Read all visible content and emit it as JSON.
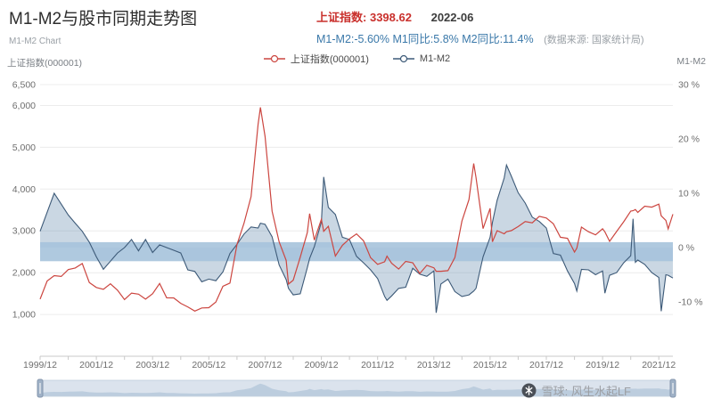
{
  "header": {
    "title": "M1-M2与股市同期走势图",
    "subtitle": "M1-M2 Chart",
    "index_label": "上证指数:",
    "index_value": "3398.62",
    "date": "2022-06",
    "stats_line": "M1-M2:-5.60% M1同比:5.8% M2同比:11.4%",
    "source_note": "(数据来源: 国家统计局)"
  },
  "colors": {
    "index_red": "#c9302c",
    "stats_blue": "#3a78a9",
    "sse_line": "#cc4640",
    "m1m2_line": "#3d5a78",
    "m1m2_area": "rgba(104,140,176,0.35)",
    "zero_band": "#a6c3dc",
    "grid": "#ececec",
    "axis": "#c8c8c8",
    "tick_text": "#6e6e6e"
  },
  "watermark": {
    "text": "雪球: 风生水起LF"
  },
  "chart_data": {
    "type": "line",
    "title": "M1-M2与股市同期走势图",
    "legend_position": "top-center",
    "grid": true,
    "x": [
      "1999/12",
      "2000/03",
      "2000/06",
      "2000/09",
      "2000/12",
      "2001/03",
      "2001/06",
      "2001/09",
      "2001/12",
      "2002/03",
      "2002/06",
      "2002/09",
      "2002/12",
      "2003/03",
      "2003/06",
      "2003/09",
      "2003/12",
      "2004/03",
      "2004/06",
      "2004/09",
      "2004/12",
      "2005/03",
      "2005/06",
      "2005/09",
      "2005/12",
      "2006/03",
      "2006/06",
      "2006/09",
      "2006/12",
      "2007/03",
      "2007/06",
      "2007/09",
      "2007/10",
      "2007/12",
      "2008/03",
      "2008/06",
      "2008/09",
      "2008/10",
      "2008/12",
      "2009/03",
      "2009/06",
      "2009/07",
      "2009/09",
      "2009/12",
      "2010/01",
      "2010/03",
      "2010/06",
      "2010/09",
      "2010/12",
      "2011/03",
      "2011/06",
      "2011/09",
      "2011/12",
      "2012/03",
      "2012/04",
      "2012/06",
      "2012/09",
      "2012/12",
      "2013/03",
      "2013/06",
      "2013/09",
      "2013/12",
      "2014/01",
      "2014/03",
      "2014/06",
      "2014/09",
      "2014/12",
      "2015/03",
      "2015/05",
      "2015/06",
      "2015/09",
      "2015/12",
      "2016/01",
      "2016/03",
      "2016/06",
      "2016/07",
      "2016/09",
      "2016/12",
      "2017/03",
      "2017/06",
      "2017/09",
      "2017/12",
      "2018/03",
      "2018/06",
      "2018/09",
      "2018/12",
      "2019/01",
      "2019/03",
      "2019/06",
      "2019/09",
      "2019/12",
      "2020/01",
      "2020/03",
      "2020/06",
      "2020/09",
      "2020/12",
      "2021/01",
      "2021/02",
      "2021/03",
      "2021/06",
      "2021/09",
      "2021/12",
      "2022/01",
      "2022/03",
      "2022/04",
      "2022/06"
    ],
    "x_tick_labels": [
      "1999/12",
      "2001/12",
      "2003/12",
      "2005/12",
      "2007/12",
      "2009/12",
      "2011/12",
      "2013/12",
      "2015/12",
      "2017/12",
      "2019/12",
      "2021/12"
    ],
    "left_axis": {
      "caption": "上证指数(000001)",
      "range": [
        0,
        6500
      ],
      "ticks": [
        {
          "v": 6500,
          "label": "6,500"
        },
        {
          "v": 6000,
          "label": "6,000"
        },
        {
          "v": 5000,
          "label": "5,000"
        },
        {
          "v": 4000,
          "label": "4,000"
        },
        {
          "v": 3000,
          "label": "3,000"
        },
        {
          "v": 2000,
          "label": "2,000"
        },
        {
          "v": 1000,
          "label": "1,000"
        }
      ]
    },
    "right_axis": {
      "caption": "M1-M2",
      "range": [
        -20,
        30
      ],
      "ticks": [
        {
          "v": 30,
          "label": "30 %"
        },
        {
          "v": 20,
          "label": "20 %"
        },
        {
          "v": 10,
          "label": "10 %"
        },
        {
          "v": 0,
          "label": "0 %"
        },
        {
          "v": -10,
          "label": "-10 %"
        }
      ]
    },
    "band": {
      "axis": "right",
      "from": 1,
      "to": -2.5
    },
    "series": [
      {
        "name": "上证指数(000001)",
        "axis": "left",
        "color": "#cc4640",
        "values": [
          1367,
          1800,
          1929,
          1910,
          2073,
          2112,
          2218,
          1764,
          1646,
          1603,
          1732,
          1582,
          1357,
          1510,
          1486,
          1367,
          1497,
          1741,
          1399,
          1396,
          1266,
          1181,
          1080,
          1155,
          1161,
          1298,
          1672,
          1752,
          2675,
          3183,
          3820,
          5552,
          5955,
          5262,
          3472,
          2736,
          2294,
          1729,
          1821,
          2373,
          2959,
          3412,
          2779,
          3277,
          2989,
          3109,
          2398,
          2655,
          2808,
          2928,
          2762,
          2359,
          2199,
          2262,
          2396,
          2225,
          2086,
          2269,
          2237,
          1979,
          2175,
          2116,
          2033,
          2033,
          2048,
          2364,
          3235,
          3748,
          4612,
          4277,
          3053,
          3539,
          2738,
          3004,
          2930,
          2979,
          3005,
          3104,
          3223,
          3192,
          3349,
          3307,
          3169,
          2847,
          2821,
          2494,
          2585,
          3091,
          2979,
          2905,
          3050,
          2977,
          2750,
          2985,
          3218,
          3473,
          3483,
          3509,
          3442,
          3591,
          3568,
          3640,
          3361,
          3252,
          3047,
          3399
        ]
      },
      {
        "name": "M1-M2",
        "axis": "right",
        "color": "#3d5a78",
        "area": true,
        "values": [
          3.0,
          6.5,
          10.0,
          8.0,
          6.0,
          4.5,
          3.0,
          1.0,
          -1.7,
          -4.0,
          -2.5,
          -1.0,
          0.0,
          1.5,
          -0.6,
          1.5,
          -0.9,
          0.5,
          0.0,
          -0.5,
          -1.0,
          -4.1,
          -4.4,
          -6.3,
          -5.8,
          -6.1,
          -4.5,
          -1.1,
          0.6,
          2.5,
          3.8,
          3.6,
          4.5,
          4.3,
          2.0,
          -3.2,
          -5.9,
          -7.5,
          -8.7,
          -8.5,
          -3.7,
          -2.0,
          0.2,
          4.7,
          13.0,
          7.4,
          6.1,
          1.9,
          1.5,
          -1.6,
          -2.8,
          -4.1,
          -5.7,
          -9.0,
          -9.7,
          -8.9,
          -7.5,
          -7.3,
          -3.8,
          -4.9,
          -5.3,
          -4.3,
          -12.0,
          -6.7,
          -5.8,
          -8.1,
          -9.0,
          -8.7,
          -8.0,
          -7.5,
          -1.7,
          1.9,
          4.6,
          8.7,
          12.8,
          15.2,
          13.2,
          10.1,
          8.2,
          5.6,
          4.8,
          3.6,
          -1.1,
          -1.4,
          -4.3,
          -6.6,
          -8.0,
          -4.0,
          -4.1,
          -5.0,
          -4.3,
          -8.4,
          -5.1,
          -4.6,
          -2.8,
          -1.5,
          5.3,
          -2.7,
          -2.3,
          -3.1,
          -4.6,
          -5.5,
          -11.7,
          -5.0,
          -5.1,
          -5.6
        ]
      }
    ],
    "navigator": {
      "present": true,
      "range_start": "1999/12",
      "range_end": "2022/06"
    }
  }
}
